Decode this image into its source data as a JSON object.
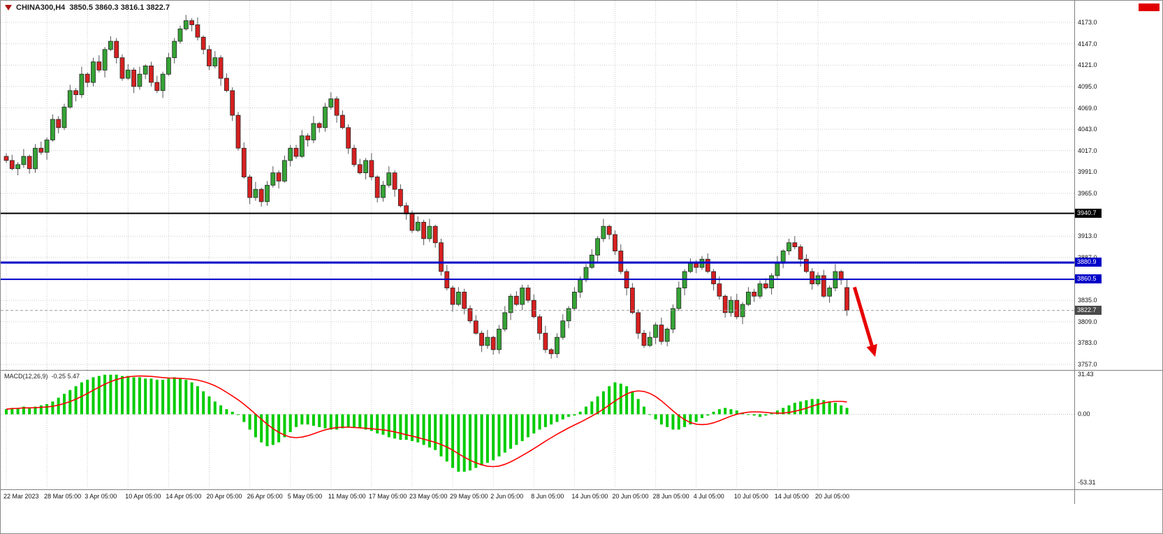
{
  "header": {
    "symbol_period": "CHINA300,H4",
    "ohlc_text": "3850.5 3860.3 3816.1 3822.7"
  },
  "colors": {
    "bull": "#35a335",
    "bear": "#d62020",
    "body_border": "#262626",
    "wick": "#555555",
    "grid": "#c9c9c9",
    "macd_hist": "#00cc00",
    "macd_signal": "#ff0000",
    "level_black": "#000000",
    "level_blue": "#0000c8",
    "current_bg": "#4a4a4a",
    "arrow": "#e60000",
    "badge": "#e00000"
  },
  "chart_data": {
    "type": "candlestick",
    "symbol": "CHINA300",
    "timeframe": "H4",
    "current_bar": {
      "open": 3850.5,
      "high": 3860.3,
      "low": 3816.1,
      "close": 3822.7
    },
    "y_axis": {
      "min": 3757.0,
      "max": 4173.0,
      "tick_interval": 26,
      "ticks": [
        4173,
        4147,
        4121,
        4095,
        4069,
        4043,
        4017,
        3991,
        3965,
        3913,
        3887,
        3835,
        3809,
        3783,
        3757
      ]
    },
    "levels": [
      {
        "value": 3940.7,
        "label": "3940.7",
        "color": "#000000",
        "bg": "#000000",
        "width": 2,
        "style": "solid"
      },
      {
        "value": 3880.9,
        "label": "3880.9",
        "color": "#0000c8",
        "bg": "#0000c8",
        "width": 3,
        "style": "solid"
      },
      {
        "value": 3860.5,
        "label": "3860.5",
        "color": "#0000c8",
        "bg": "#0000c8",
        "width": 2,
        "style": "solid"
      },
      {
        "value": 3822.7,
        "label": "3822.7",
        "color": "#9a9a9a",
        "bg": "#4a4a4a",
        "width": 1,
        "style": "dash"
      }
    ],
    "x_ticks": [
      {
        "label": "22 Mar 2023",
        "index": 0
      },
      {
        "label": "28 Mar 05:00",
        "index": 7
      },
      {
        "label": "3 Apr 05:00",
        "index": 14
      },
      {
        "label": "10 Apr 05:00",
        "index": 21
      },
      {
        "label": "14 Apr 05:00",
        "index": 28
      },
      {
        "label": "20 Apr 05:00",
        "index": 35
      },
      {
        "label": "26 Apr 05:00",
        "index": 42
      },
      {
        "label": "5 May 05:00",
        "index": 49
      },
      {
        "label": "11 May 05:00",
        "index": 56
      },
      {
        "label": "17 May 05:00",
        "index": 63
      },
      {
        "label": "23 May 05:00",
        "index": 70
      },
      {
        "label": "29 May 05:00",
        "index": 77
      },
      {
        "label": "2 Jun 05:00",
        "index": 84
      },
      {
        "label": "8 Jun 05:00",
        "index": 91
      },
      {
        "label": "14 Jun 05:00",
        "index": 98
      },
      {
        "label": "20 Jun 05:00",
        "index": 105
      },
      {
        "label": "28 Jun 05:00",
        "index": 112
      },
      {
        "label": "4 Jul 05:00",
        "index": 119
      },
      {
        "label": "10 Jul 05:00",
        "index": 126
      },
      {
        "label": "14 Jul 05:00",
        "index": 133
      },
      {
        "label": "20 Jul 05:00",
        "index": 140
      }
    ],
    "candles": [
      [
        4010,
        4014,
        4002,
        4005
      ],
      [
        4005,
        4012,
        3993,
        3995
      ],
      [
        3995,
        4003,
        3987,
        4000
      ],
      [
        4000,
        4019,
        3996,
        4010
      ],
      [
        4010,
        4012,
        3989,
        3995
      ],
      [
        3995,
        4025,
        3990,
        4020
      ],
      [
        4020,
        4028,
        4012,
        4015
      ],
      [
        4015,
        4033,
        4006,
        4030
      ],
      [
        4030,
        4061,
        4028,
        4055
      ],
      [
        4055,
        4059,
        4038,
        4045
      ],
      [
        4045,
        4074,
        4042,
        4070
      ],
      [
        4070,
        4097,
        4068,
        4090
      ],
      [
        4090,
        4093,
        4077,
        4085
      ],
      [
        4085,
        4119,
        4081,
        4110
      ],
      [
        4110,
        4112,
        4094,
        4100
      ],
      [
        4100,
        4130,
        4095,
        4125
      ],
      [
        4125,
        4133,
        4112,
        4115
      ],
      [
        4115,
        4143,
        4106,
        4140
      ],
      [
        4140,
        4156,
        4138,
        4150
      ],
      [
        4150,
        4154,
        4123,
        4130
      ],
      [
        4130,
        4134,
        4102,
        4105
      ],
      [
        4105,
        4122,
        4103,
        4115
      ],
      [
        4115,
        4118,
        4087,
        4095
      ],
      [
        4095,
        4119,
        4091,
        4110
      ],
      [
        4110,
        4122,
        4104,
        4120
      ],
      [
        4120,
        4125,
        4095,
        4100
      ],
      [
        4100,
        4108,
        4087,
        4090
      ],
      [
        4090,
        4113,
        4081,
        4110
      ],
      [
        4110,
        4136,
        4108,
        4130
      ],
      [
        4130,
        4154,
        4123,
        4150
      ],
      [
        4150,
        4169,
        4147,
        4165
      ],
      [
        4165,
        4182,
        4163,
        4175
      ],
      [
        4175,
        4178,
        4162,
        4170
      ],
      [
        4170,
        4179,
        4151,
        4155
      ],
      [
        4155,
        4157,
        4134,
        4140
      ],
      [
        4140,
        4145,
        4115,
        4120
      ],
      [
        4120,
        4138,
        4117,
        4130
      ],
      [
        4130,
        4133,
        4096,
        4105
      ],
      [
        4105,
        4111,
        4088,
        4090
      ],
      [
        4090,
        4094,
        4053,
        4060
      ],
      [
        4060,
        4064,
        4017,
        4020
      ],
      [
        4020,
        4027,
        3983,
        3985
      ],
      [
        3985,
        3988,
        3952,
        3960
      ],
      [
        3960,
        3979,
        3956,
        3970
      ],
      [
        3970,
        3972,
        3949,
        3955
      ],
      [
        3955,
        3980,
        3950,
        3975
      ],
      [
        3975,
        3998,
        3972,
        3990
      ],
      [
        3990,
        3993,
        3971,
        3980
      ],
      [
        3980,
        4011,
        3978,
        4005
      ],
      [
        4005,
        4024,
        3998,
        4020
      ],
      [
        4020,
        4024,
        4007,
        4010
      ],
      [
        4010,
        4042,
        4008,
        4035
      ],
      [
        4035,
        4038,
        4022,
        4030
      ],
      [
        4030,
        4059,
        4026,
        4050
      ],
      [
        4050,
        4052,
        4039,
        4045
      ],
      [
        4045,
        4075,
        4040,
        4070
      ],
      [
        4070,
        4088,
        4067,
        4080
      ],
      [
        4080,
        4083,
        4051,
        4060
      ],
      [
        4060,
        4066,
        4043,
        4045
      ],
      [
        4045,
        4049,
        4013,
        4020
      ],
      [
        4020,
        4024,
        3997,
        4000
      ],
      [
        4000,
        4007,
        3988,
        3990
      ],
      [
        3990,
        4008,
        3982,
        4005
      ],
      [
        4005,
        4014,
        3981,
        3985
      ],
      [
        3985,
        3987,
        3954,
        3960
      ],
      [
        3960,
        3980,
        3955,
        3975
      ],
      [
        3975,
        3998,
        3972,
        3990
      ],
      [
        3990,
        3993,
        3961,
        3970
      ],
      [
        3970,
        3976,
        3948,
        3950
      ],
      [
        3950,
        3954,
        3933,
        3940
      ],
      [
        3940,
        3944,
        3917,
        3920
      ],
      [
        3920,
        3937,
        3918,
        3930
      ],
      [
        3930,
        3933,
        3902,
        3910
      ],
      [
        3910,
        3934,
        3906,
        3925
      ],
      [
        3925,
        3927,
        3899,
        3905
      ],
      [
        3905,
        3910,
        3865,
        3870
      ],
      [
        3870,
        3878,
        3847,
        3850
      ],
      [
        3850,
        3853,
        3821,
        3830
      ],
      [
        3830,
        3851,
        3828,
        3845
      ],
      [
        3845,
        3849,
        3818,
        3825
      ],
      [
        3825,
        3829,
        3807,
        3810
      ],
      [
        3810,
        3817,
        3793,
        3795
      ],
      [
        3795,
        3798,
        3772,
        3780
      ],
      [
        3780,
        3799,
        3776,
        3790
      ],
      [
        3790,
        3792,
        3769,
        3775
      ],
      [
        3775,
        3805,
        3770,
        3800
      ],
      [
        3800,
        3828,
        3797,
        3820
      ],
      [
        3820,
        3843,
        3811,
        3840
      ],
      [
        3840,
        3846,
        3828,
        3830
      ],
      [
        3830,
        3854,
        3823,
        3850
      ],
      [
        3850,
        3854,
        3832,
        3835
      ],
      [
        3835,
        3842,
        3813,
        3815
      ],
      [
        3815,
        3818,
        3787,
        3795
      ],
      [
        3795,
        3804,
        3771,
        3775
      ],
      [
        3775,
        3777,
        3764,
        3770
      ],
      [
        3770,
        3795,
        3765,
        3790
      ],
      [
        3790,
        3818,
        3787,
        3810
      ],
      [
        3810,
        3828,
        3801,
        3825
      ],
      [
        3825,
        3851,
        3823,
        3845
      ],
      [
        3845,
        3864,
        3838,
        3860
      ],
      [
        3860,
        3879,
        3857,
        3875
      ],
      [
        3875,
        3897,
        3873,
        3890
      ],
      [
        3890,
        3913,
        3882,
        3910
      ],
      [
        3910,
        3934,
        3906,
        3925
      ],
      [
        3925,
        3927,
        3909,
        3915
      ],
      [
        3915,
        3920,
        3890,
        3895
      ],
      [
        3895,
        3903,
        3867,
        3870
      ],
      [
        3870,
        3873,
        3841,
        3850
      ],
      [
        3850,
        3856,
        3818,
        3820
      ],
      [
        3820,
        3824,
        3788,
        3795
      ],
      [
        3795,
        3799,
        3777,
        3780
      ],
      [
        3780,
        3797,
        3778,
        3790
      ],
      [
        3790,
        3808,
        3782,
        3805
      ],
      [
        3805,
        3814,
        3781,
        3785
      ],
      [
        3785,
        3802,
        3779,
        3800
      ],
      [
        3800,
        3830,
        3795,
        3825
      ],
      [
        3825,
        3858,
        3822,
        3850
      ],
      [
        3850,
        3873,
        3841,
        3870
      ],
      [
        3870,
        3886,
        3868,
        3880
      ],
      [
        3880,
        3884,
        3868,
        3875
      ],
      [
        3875,
        3889,
        3872,
        3885
      ],
      [
        3885,
        3892,
        3868,
        3870
      ],
      [
        3870,
        3873,
        3847,
        3855
      ],
      [
        3855,
        3864,
        3836,
        3840
      ],
      [
        3840,
        3842,
        3814,
        3820
      ],
      [
        3820,
        3840,
        3815,
        3835
      ],
      [
        3835,
        3843,
        3812,
        3815
      ],
      [
        3815,
        3833,
        3806,
        3830
      ],
      [
        3830,
        3851,
        3828,
        3845
      ],
      [
        3845,
        3849,
        3833,
        3840
      ],
      [
        3840,
        3859,
        3837,
        3855
      ],
      [
        3855,
        3862,
        3848,
        3850
      ],
      [
        3850,
        3868,
        3842,
        3865
      ],
      [
        3865,
        3889,
        3861,
        3880
      ],
      [
        3880,
        3897,
        3874,
        3895
      ],
      [
        3895,
        3910,
        3890,
        3905
      ],
      [
        3905,
        3913,
        3897,
        3900
      ],
      [
        3900,
        3903,
        3876,
        3885
      ],
      [
        3885,
        3891,
        3868,
        3870
      ],
      [
        3870,
        3874,
        3848,
        3855
      ],
      [
        3855,
        3869,
        3852,
        3865
      ],
      [
        3865,
        3872,
        3838,
        3840
      ],
      [
        3840,
        3853,
        3832,
        3850
      ],
      [
        3850,
        3879,
        3846,
        3870
      ],
      [
        3870,
        3872,
        3854,
        3860
      ],
      [
        3850.5,
        3860.3,
        3816.1,
        3822.7
      ]
    ],
    "macd": {
      "name": "MACD(12,26,9)",
      "values_text": "-0.25 5.47",
      "axis": {
        "max": 31.43,
        "zero": 0.0,
        "min": -53.31,
        "labels": [
          {
            "text": "31.43",
            "value": 31.43
          },
          {
            "text": "0.00",
            "value": 0.0
          },
          {
            "text": "-53.31",
            "value": -53.31
          }
        ]
      },
      "histogram": [
        4,
        5,
        5,
        6,
        5,
        6,
        7,
        8,
        10,
        13,
        16,
        19,
        22,
        25,
        27,
        29,
        30,
        31,
        31,
        31,
        30,
        30,
        29,
        29,
        28,
        28,
        27,
        27,
        28,
        29,
        28,
        27,
        25,
        22,
        18,
        14,
        10,
        7,
        4,
        2,
        0,
        -6,
        -12,
        -18,
        -22,
        -25,
        -24,
        -22,
        -18,
        -14,
        -10,
        -8,
        -8,
        -9,
        -10,
        -11,
        -12,
        -12,
        -11,
        -10,
        -10,
        -11,
        -12,
        -13,
        -15,
        -16,
        -18,
        -19,
        -20,
        -20,
        -21,
        -22,
        -24,
        -26,
        -28,
        -33,
        -37,
        -42,
        -45,
        -45,
        -44,
        -42,
        -40,
        -38,
        -36,
        -33,
        -30,
        -27,
        -24,
        -21,
        -18,
        -15,
        -12,
        -10,
        -8,
        -6,
        -4,
        -2,
        -1,
        2,
        6,
        10,
        14,
        18,
        22,
        25,
        24,
        22,
        18,
        12,
        6,
        0,
        -4,
        -8,
        -10,
        -12,
        -12,
        -10,
        -8,
        -6,
        -3,
        -1,
        2,
        4,
        5,
        4,
        3,
        1,
        0,
        -1,
        -2,
        -1,
        1,
        3,
        5,
        7,
        9,
        10,
        11,
        12,
        12,
        11,
        10,
        9,
        7,
        5
      ]
    },
    "annotations": [
      {
        "type": "down-arrow",
        "color": "#e60000",
        "from_index": 146.3,
        "from_price": 3851,
        "to_index": 149.3,
        "to_price": 3780
      }
    ]
  }
}
